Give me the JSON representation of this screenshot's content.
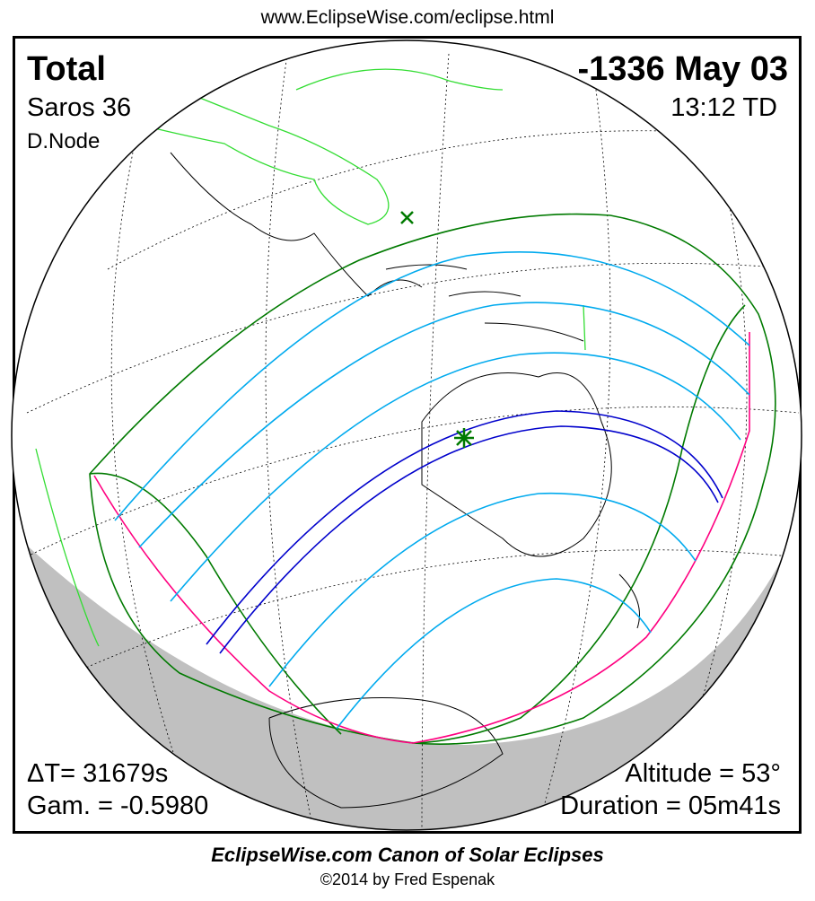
{
  "header_url": "www.EclipseWise.com/eclipse.html",
  "eclipse": {
    "type": "Total",
    "date": "-1336 May 03",
    "saros": "Saros  36",
    "time": "13:12 TD",
    "node": "D.Node",
    "delta_t": "ΔT=  31679s",
    "gamma": "Gam. = -0.5980",
    "altitude": "Altitude = 53°",
    "duration": "Duration = 05m41s"
  },
  "footer": {
    "title": "EclipseWise.com Canon of Solar Eclipses",
    "copyright": "©2014 by Fred Espenak"
  },
  "colors": {
    "penumbra_limits": "#007a00",
    "rise_set_curve": "#ff0080",
    "magnitude_lines": "#00aaee",
    "central_path": "#0000cc",
    "coastlines": "#000000",
    "highlighted_coast": "#33dd33",
    "night_shade": "#c0c0c0"
  },
  "markers": [
    "greatest-eclipse-star",
    "subsolar-x"
  ]
}
